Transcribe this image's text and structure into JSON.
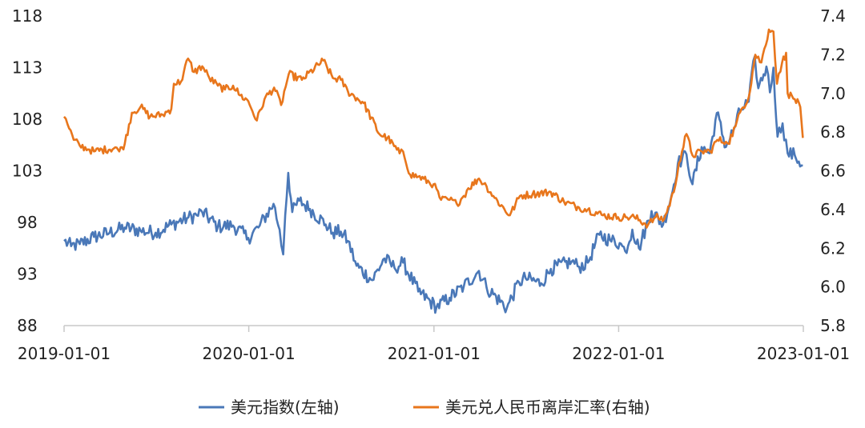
{
  "colors": {
    "usd_index": "#4a78b8",
    "usd_cnh": "#e8761c",
    "axis": "#c8c8c8"
  },
  "chart_data": {
    "type": "line",
    "title": "",
    "xlabel": "",
    "ylabel_left": "",
    "ylabel_right": "",
    "x_range": [
      "2019-01-01",
      "2023-01-01"
    ],
    "x_ticks": [
      "2019-01-01",
      "2020-01-01",
      "2021-01-01",
      "2022-01-01",
      "2023-01-01"
    ],
    "y_left": {
      "min": 88,
      "max": 118,
      "ticks": [
        "88",
        "93",
        "98",
        "103",
        "108",
        "113",
        "118"
      ]
    },
    "y_right": {
      "min": 5.8,
      "max": 7.4,
      "ticks": [
        "5.8",
        "6.0",
        "6.2",
        "6.4",
        "6.6",
        "6.8",
        "7.0",
        "7.2",
        "7.4"
      ]
    },
    "grid": false,
    "legend_position": "bottom",
    "series": [
      {
        "name": "美元指数(左轴)",
        "axis": "left",
        "points": [
          [
            "2019-01-01",
            96.2
          ],
          [
            "2019-01-15",
            95.7
          ],
          [
            "2019-02-01",
            95.9
          ],
          [
            "2019-03-01",
            96.6
          ],
          [
            "2019-04-01",
            97.0
          ],
          [
            "2019-05-01",
            97.5
          ],
          [
            "2019-06-01",
            97.2
          ],
          [
            "2019-07-01",
            97.0
          ],
          [
            "2019-08-01",
            97.8
          ],
          [
            "2019-09-01",
            98.4
          ],
          [
            "2019-09-20",
            98.7
          ],
          [
            "2019-10-01",
            99.0
          ],
          [
            "2019-11-01",
            97.6
          ],
          [
            "2019-12-01",
            97.7
          ],
          [
            "2019-12-31",
            96.5
          ],
          [
            "2020-01-20",
            97.5
          ],
          [
            "2020-02-19",
            99.8
          ],
          [
            "2020-03-02",
            97.3
          ],
          [
            "2020-03-09",
            94.9
          ],
          [
            "2020-03-13",
            98.7
          ],
          [
            "2020-03-19",
            102.8
          ],
          [
            "2020-03-27",
            99.0
          ],
          [
            "2020-04-10",
            100.1
          ],
          [
            "2020-05-01",
            99.3
          ],
          [
            "2020-06-01",
            97.8
          ],
          [
            "2020-06-15",
            97.0
          ],
          [
            "2020-07-01",
            97.1
          ],
          [
            "2020-07-15",
            96.2
          ],
          [
            "2020-08-01",
            93.8
          ],
          [
            "2020-09-01",
            92.4
          ],
          [
            "2020-09-25",
            94.5
          ],
          [
            "2020-10-15",
            93.6
          ],
          [
            "2020-11-01",
            94.1
          ],
          [
            "2020-12-01",
            91.3
          ],
          [
            "2021-01-06",
            89.8
          ],
          [
            "2021-02-01",
            90.7
          ],
          [
            "2021-03-01",
            91.8
          ],
          [
            "2021-03-31",
            93.3
          ],
          [
            "2021-04-15",
            91.7
          ],
          [
            "2021-05-25",
            89.7
          ],
          [
            "2021-06-18",
            92.2
          ],
          [
            "2021-07-01",
            92.6
          ],
          [
            "2021-08-01",
            92.1
          ],
          [
            "2021-08-20",
            93.5
          ],
          [
            "2021-09-30",
            94.2
          ],
          [
            "2021-10-15",
            93.7
          ],
          [
            "2021-11-01",
            94.1
          ],
          [
            "2021-11-24",
            96.8
          ],
          [
            "2021-12-15",
            96.3
          ],
          [
            "2022-01-03",
            96.0
          ],
          [
            "2022-01-14",
            95.2
          ],
          [
            "2022-01-28",
            97.3
          ],
          [
            "2022-02-10",
            95.5
          ],
          [
            "2022-03-07",
            99.1
          ],
          [
            "2022-03-30",
            97.8
          ],
          [
            "2022-04-15",
            100.5
          ],
          [
            "2022-04-28",
            103.7
          ],
          [
            "2022-05-15",
            104.6
          ],
          [
            "2022-05-27",
            101.7
          ],
          [
            "2022-06-14",
            105.3
          ],
          [
            "2022-06-30",
            104.7
          ],
          [
            "2022-07-14",
            108.6
          ],
          [
            "2022-08-01",
            105.3
          ],
          [
            "2022-08-15",
            106.8
          ],
          [
            "2022-08-29",
            108.8
          ],
          [
            "2022-09-15",
            109.7
          ],
          [
            "2022-09-27",
            114.1
          ],
          [
            "2022-10-04",
            111.0
          ],
          [
            "2022-10-20",
            113.1
          ],
          [
            "2022-10-27",
            110.6
          ],
          [
            "2022-11-03",
            113.0
          ],
          [
            "2022-11-11",
            106.3
          ],
          [
            "2022-11-21",
            107.6
          ],
          [
            "2022-12-01",
            104.7
          ],
          [
            "2022-12-15",
            104.5
          ],
          [
            "2022-12-31",
            103.5
          ]
        ]
      },
      {
        "name": "美元兑人民币离岸汇率(右轴)",
        "axis": "right",
        "points": [
          [
            "2019-01-01",
            6.88
          ],
          [
            "2019-01-08",
            6.84
          ],
          [
            "2019-01-20",
            6.76
          ],
          [
            "2019-02-01",
            6.73
          ],
          [
            "2019-02-20",
            6.71
          ],
          [
            "2019-03-01",
            6.7
          ],
          [
            "2019-04-15",
            6.72
          ],
          [
            "2019-04-20",
            6.7
          ],
          [
            "2019-05-01",
            6.74
          ],
          [
            "2019-05-15",
            6.9
          ],
          [
            "2019-06-01",
            6.93
          ],
          [
            "2019-06-20",
            6.88
          ],
          [
            "2019-07-15",
            6.89
          ],
          [
            "2019-08-01",
            6.92
          ],
          [
            "2019-08-06",
            7.05
          ],
          [
            "2019-08-20",
            7.06
          ],
          [
            "2019-09-03",
            7.18
          ],
          [
            "2019-09-15",
            7.11
          ],
          [
            "2019-10-01",
            7.14
          ],
          [
            "2019-10-15",
            7.08
          ],
          [
            "2019-11-01",
            7.04
          ],
          [
            "2019-11-15",
            7.02
          ],
          [
            "2019-12-01",
            7.04
          ],
          [
            "2019-12-15",
            6.99
          ],
          [
            "2019-12-31",
            6.96
          ],
          [
            "2020-01-17",
            6.86
          ],
          [
            "2020-02-01",
            6.97
          ],
          [
            "2020-02-20",
            7.03
          ],
          [
            "2020-03-05",
            6.94
          ],
          [
            "2020-03-20",
            7.1
          ],
          [
            "2020-04-15",
            7.07
          ],
          [
            "2020-05-27",
            7.17
          ],
          [
            "2020-06-15",
            7.08
          ],
          [
            "2020-07-01",
            7.07
          ],
          [
            "2020-07-15",
            7.01
          ],
          [
            "2020-08-15",
            6.95
          ],
          [
            "2020-09-15",
            6.79
          ],
          [
            "2020-10-01",
            6.77
          ],
          [
            "2020-10-25",
            6.69
          ],
          [
            "2020-11-01",
            6.7
          ],
          [
            "2020-11-15",
            6.58
          ],
          [
            "2020-12-01",
            6.57
          ],
          [
            "2020-12-31",
            6.53
          ],
          [
            "2021-01-15",
            6.45
          ],
          [
            "2021-02-01",
            6.45
          ],
          [
            "2021-02-15",
            6.43
          ],
          [
            "2021-03-01",
            6.47
          ],
          [
            "2021-03-10",
            6.51
          ],
          [
            "2021-03-31",
            6.56
          ],
          [
            "2021-04-15",
            6.52
          ],
          [
            "2021-05-01",
            6.46
          ],
          [
            "2021-05-31",
            6.37
          ],
          [
            "2021-06-20",
            6.47
          ],
          [
            "2021-07-15",
            6.48
          ],
          [
            "2021-08-20",
            6.49
          ],
          [
            "2021-09-15",
            6.44
          ],
          [
            "2021-10-15",
            6.41
          ],
          [
            "2021-11-01",
            6.4
          ],
          [
            "2021-12-01",
            6.37
          ],
          [
            "2021-12-31",
            6.36
          ],
          [
            "2022-01-15",
            6.36
          ],
          [
            "2022-02-01",
            6.36
          ],
          [
            "2022-02-28",
            6.32
          ],
          [
            "2022-03-15",
            6.36
          ],
          [
            "2022-04-01",
            6.35
          ],
          [
            "2022-04-20",
            6.49
          ],
          [
            "2022-04-30",
            6.64
          ],
          [
            "2022-05-15",
            6.79
          ],
          [
            "2022-05-27",
            6.68
          ],
          [
            "2022-06-15",
            6.7
          ],
          [
            "2022-07-01",
            6.7
          ],
          [
            "2022-07-15",
            6.76
          ],
          [
            "2022-08-01",
            6.75
          ],
          [
            "2022-08-05",
            6.74
          ],
          [
            "2022-08-20",
            6.83
          ],
          [
            "2022-09-01",
            6.92
          ],
          [
            "2022-09-15",
            6.98
          ],
          [
            "2022-09-28",
            7.2
          ],
          [
            "2022-10-10",
            7.16
          ],
          [
            "2022-10-25",
            7.33
          ],
          [
            "2022-11-03",
            7.32
          ],
          [
            "2022-11-10",
            7.05
          ],
          [
            "2022-11-20",
            7.16
          ],
          [
            "2022-11-28",
            7.21
          ],
          [
            "2022-12-01",
            7.0
          ],
          [
            "2022-12-15",
            6.97
          ],
          [
            "2022-12-26",
            6.93
          ],
          [
            "2022-12-31",
            6.77
          ]
        ]
      }
    ]
  }
}
